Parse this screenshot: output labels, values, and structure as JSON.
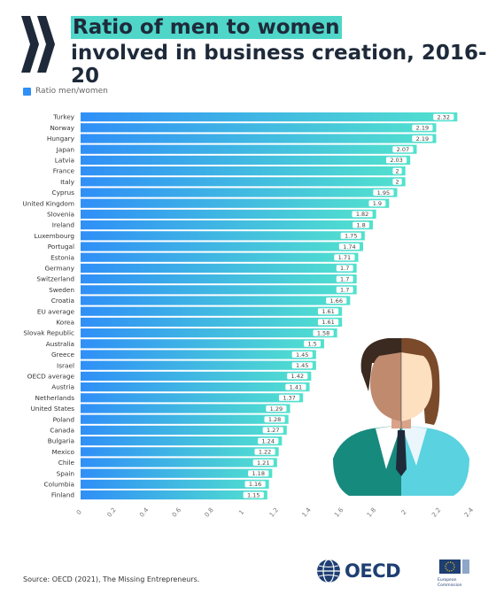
{
  "title": {
    "line1": "Ratio of men to women",
    "line2": "involved in business creation, 2016-20"
  },
  "legend": {
    "label": "Ratio men/women",
    "color": "#2f8ff7"
  },
  "chart_data": {
    "type": "bar",
    "orientation": "horizontal",
    "categories": [
      "Turkey",
      "Norway",
      "Hungary",
      "Japan",
      "Latvia",
      "France",
      "Italy",
      "Cyprus",
      "United Kingdom",
      "Slovenia",
      "Ireland",
      "Luxembourg",
      "Portugal",
      "Estonia",
      "Germany",
      "Switzerland",
      "Sweden",
      "Croatia",
      "EU average",
      "Korea",
      "Slovak Republic",
      "Australia",
      "Greece",
      "Israel",
      "OECD average",
      "Austria",
      "Netherlands",
      "United States",
      "Poland",
      "Canada",
      "Bulgaria",
      "Mexico",
      "Chile",
      "Spain",
      "Columbia",
      "Finland"
    ],
    "series": [
      {
        "name": "Ratio men/women",
        "values": [
          2.32,
          2.19,
          2.19,
          2.07,
          2.03,
          2,
          2,
          1.95,
          1.9,
          1.82,
          1.8,
          1.75,
          1.74,
          1.71,
          1.7,
          1.7,
          1.7,
          1.66,
          1.61,
          1.61,
          1.58,
          1.5,
          1.45,
          1.45,
          1.42,
          1.41,
          1.37,
          1.29,
          1.28,
          1.27,
          1.24,
          1.22,
          1.21,
          1.18,
          1.16,
          1.15
        ]
      }
    ],
    "xlim": [
      0,
      2.4
    ],
    "xticks": [
      "0",
      "0.2",
      "0.4",
      "0.6",
      "0.8",
      "1",
      "1.2",
      "1.4",
      "1.6",
      "1.8",
      "2",
      "2.2",
      "2.4"
    ],
    "gradient": {
      "start": "#2f8ff7",
      "end": "#52e2cd"
    },
    "grid": false
  },
  "source": "Source: OECD (2021), The Missing Entrepreneurs.",
  "oecd_logo": {
    "text": "OECD"
  },
  "ec_logo": {
    "line1": "European",
    "line2": "Commission"
  }
}
